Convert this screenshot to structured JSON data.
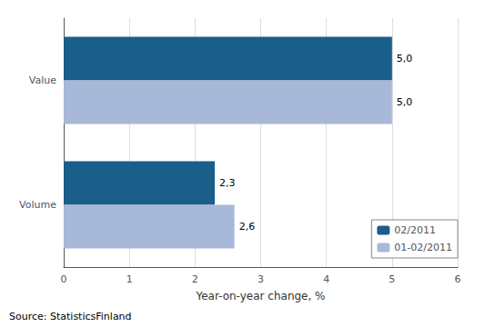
{
  "chart_data": {
    "type": "bar",
    "orientation": "horizontal",
    "categories": [
      "Volume",
      "Value"
    ],
    "series": [
      {
        "name": "02/2011",
        "color": "#1a5e8a",
        "values": [
          2.3,
          5.0
        ],
        "value_labels": [
          "2,3",
          "5,0"
        ]
      },
      {
        "name": "01-02/2011",
        "color": "#a8b8d8",
        "values": [
          2.6,
          5.0
        ],
        "value_labels": [
          "2,6",
          "5,0"
        ]
      }
    ],
    "xlabel": "Year-on-year change, %",
    "xlim": [
      0,
      6
    ],
    "xticks": [
      0,
      1,
      2,
      3,
      4,
      5,
      6
    ],
    "grid": true,
    "legend": "lower right",
    "data_labels": true,
    "annotation": "Source: StatisticsFinland"
  }
}
